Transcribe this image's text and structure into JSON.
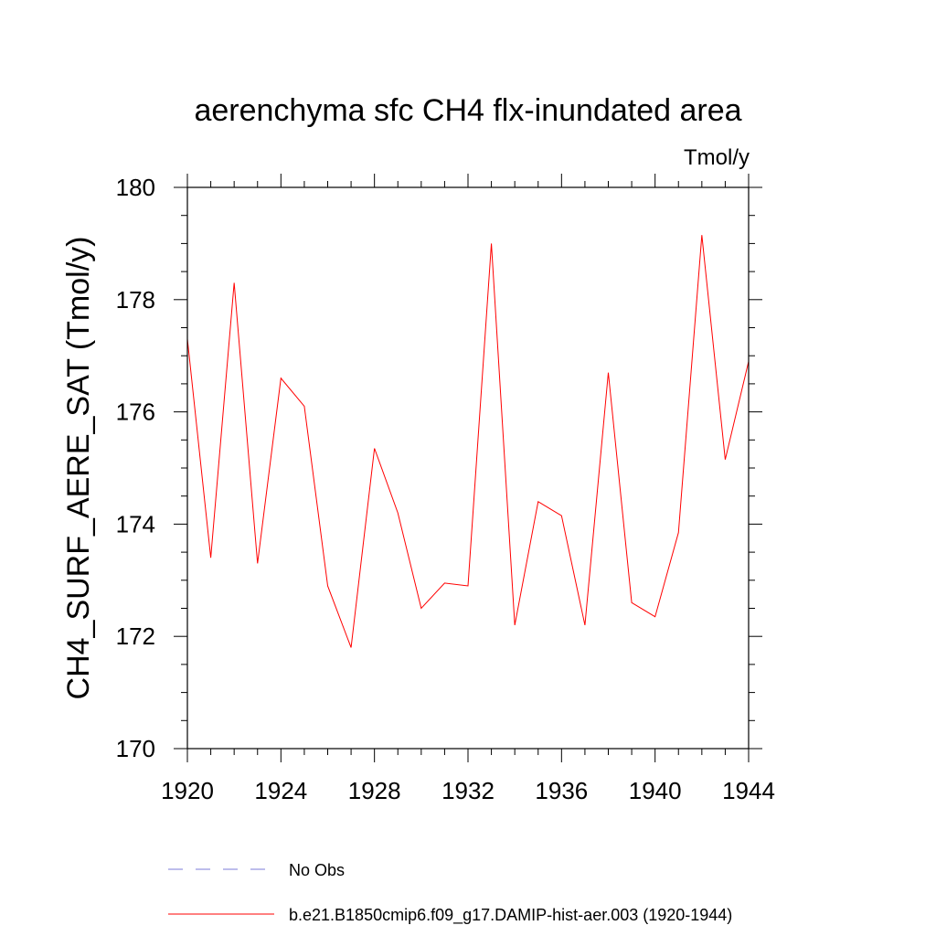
{
  "chart_data": {
    "type": "line",
    "title": "aerenchyma sfc CH4 flx-inundated area",
    "units_label": "Tmol/y",
    "ylabel": "CH4_SURF_AERE_SAT  (Tmol/y)",
    "xlabel": "",
    "xlim": [
      1920,
      1944
    ],
    "ylim": [
      170,
      180
    ],
    "x_ticks": [
      1920,
      1924,
      1928,
      1932,
      1936,
      1940,
      1944
    ],
    "y_ticks": [
      170,
      172,
      174,
      176,
      178,
      180
    ],
    "grid": false,
    "legend_position": "bottom",
    "series": [
      {
        "name": "b.e21.B1850cmip6.f09_g17.DAMIP-hist-aer.003 (1920-1944)",
        "color": "#ff0000",
        "style": "solid",
        "x": [
          1920,
          1921,
          1922,
          1923,
          1924,
          1925,
          1926,
          1927,
          1928,
          1929,
          1930,
          1931,
          1932,
          1933,
          1934,
          1935,
          1936,
          1937,
          1938,
          1939,
          1940,
          1941,
          1942,
          1943,
          1944
        ],
        "values": [
          177.3,
          173.4,
          178.3,
          173.3,
          176.6,
          176.1,
          172.9,
          171.8,
          175.35,
          174.2,
          172.5,
          172.95,
          172.9,
          179.0,
          172.2,
          174.4,
          174.15,
          172.2,
          176.7,
          172.6,
          172.35,
          173.85,
          179.15,
          175.15,
          176.9
        ]
      }
    ],
    "legend": [
      {
        "label": "No Obs",
        "color": "#7b7bd9",
        "style": "dashed"
      },
      {
        "label": "b.e21.B1850cmip6.f09_g17.DAMIP-hist-aer.003 (1920-1944)",
        "color": "#ff0000",
        "style": "solid"
      }
    ]
  }
}
